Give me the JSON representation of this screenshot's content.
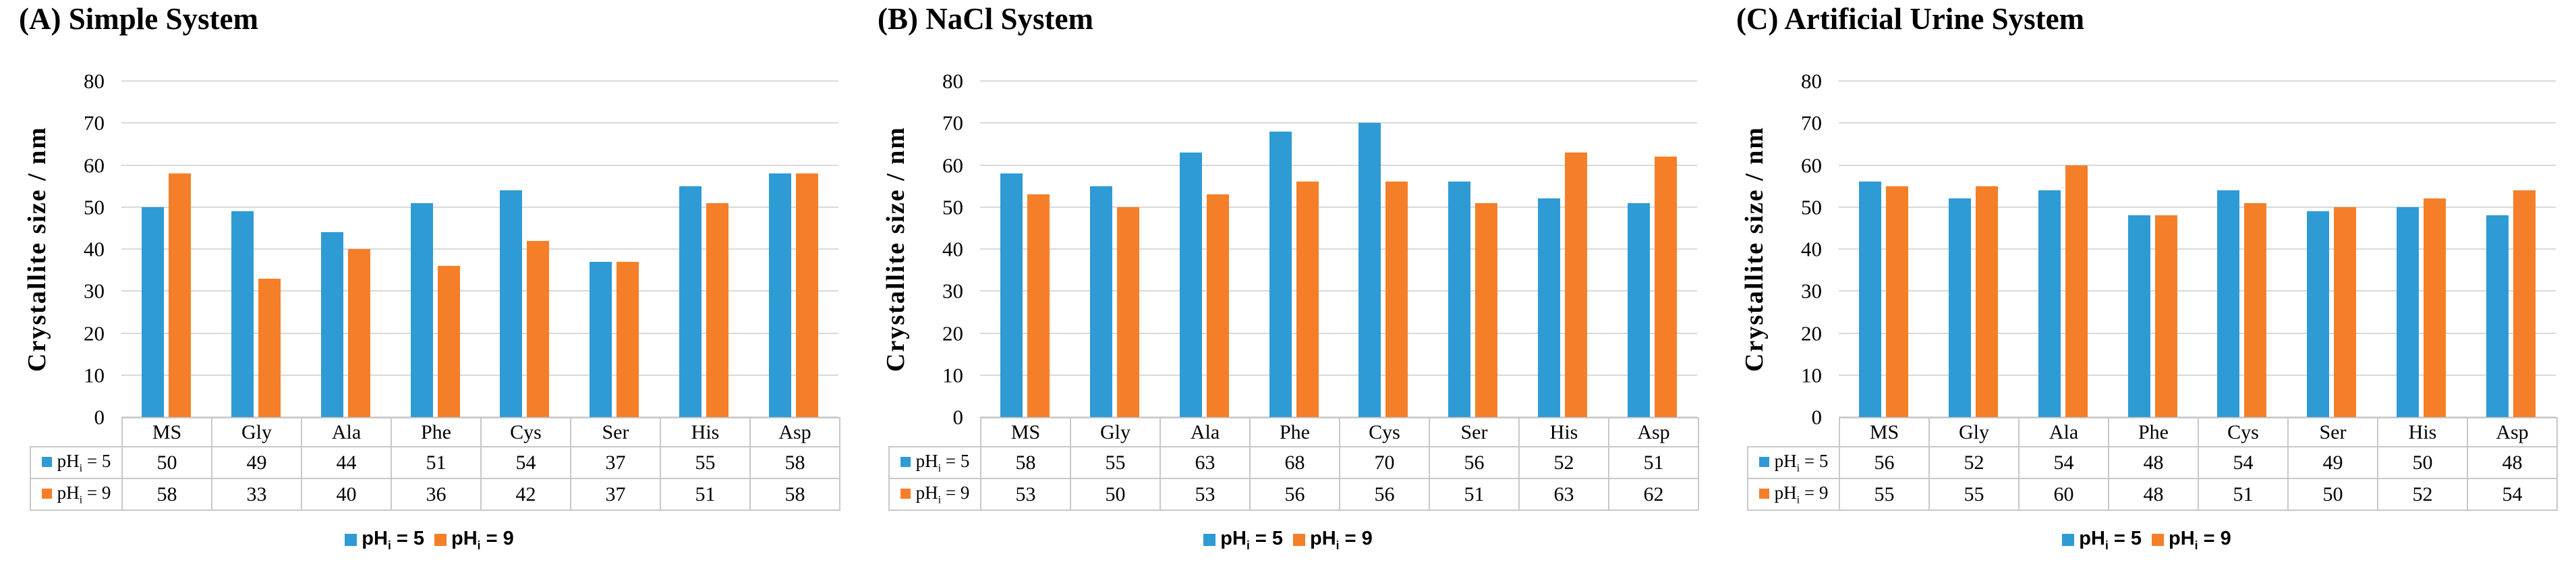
{
  "figure": {
    "background": "#FFFFFF",
    "panel_count": 3
  },
  "colors": {
    "series_ph5": "#2E9BD5",
    "series_ph9": "#F57F28",
    "gridline": "#D9D9D9",
    "table_border": "#C8C8C8",
    "text": "#000000"
  },
  "chart_data": [
    {
      "type": "bar",
      "panel": "A",
      "title": "(A) Simple System",
      "ylabel": "Crystallite size / nm",
      "xlabel": "",
      "ylim": [
        0,
        80
      ],
      "yticks": [
        0,
        10,
        20,
        30,
        40,
        50,
        60,
        70,
        80
      ],
      "grid": true,
      "legend_position": "bottom-center",
      "categories": [
        "MS",
        "Gly",
        "Ala",
        "Phe",
        "Cys",
        "Ser",
        "His",
        "Asp"
      ],
      "series": [
        {
          "id": "ph5",
          "name": "pHi = 5",
          "label_base": "pH",
          "label_sub": "i",
          "label_eq": " = 5",
          "color": "#2E9BD5",
          "values": [
            50,
            49,
            44,
            51,
            54,
            37,
            55,
            58
          ]
        },
        {
          "id": "ph9",
          "name": "pHi = 9",
          "label_base": "pH",
          "label_sub": "i",
          "label_eq": " = 9",
          "color": "#F57F28",
          "values": [
            58,
            33,
            40,
            36,
            42,
            37,
            51,
            58
          ]
        }
      ]
    },
    {
      "type": "bar",
      "panel": "B",
      "title": "(B) NaCl System",
      "ylabel": "Crystallite size / nm",
      "xlabel": "",
      "ylim": [
        0,
        80
      ],
      "yticks": [
        0,
        10,
        20,
        30,
        40,
        50,
        60,
        70,
        80
      ],
      "grid": true,
      "legend_position": "bottom-center",
      "categories": [
        "MS",
        "Gly",
        "Ala",
        "Phe",
        "Cys",
        "Ser",
        "His",
        "Asp"
      ],
      "series": [
        {
          "id": "ph5",
          "name": "pHi = 5",
          "label_base": "pH",
          "label_sub": "i",
          "label_eq": " = 5",
          "color": "#2E9BD5",
          "values": [
            58,
            55,
            63,
            68,
            70,
            56,
            52,
            51
          ]
        },
        {
          "id": "ph9",
          "name": "pHi = 9",
          "label_base": "pH",
          "label_sub": "i",
          "label_eq": " = 9",
          "color": "#F57F28",
          "values": [
            53,
            50,
            53,
            56,
            56,
            51,
            63,
            62
          ]
        }
      ]
    },
    {
      "type": "bar",
      "panel": "C",
      "title": "(C) Artificial Urine System",
      "ylabel": "Crystallite size / nm",
      "xlabel": "",
      "ylim": [
        0,
        80
      ],
      "yticks": [
        0,
        10,
        20,
        30,
        40,
        50,
        60,
        70,
        80
      ],
      "grid": true,
      "legend_position": "bottom-center",
      "categories": [
        "MS",
        "Gly",
        "Ala",
        "Phe",
        "Cys",
        "Ser",
        "His",
        "Asp"
      ],
      "series": [
        {
          "id": "ph5",
          "name": "pHi = 5",
          "label_base": "pH",
          "label_sub": "i",
          "label_eq": " = 5",
          "color": "#2E9BD5",
          "values": [
            56,
            52,
            54,
            48,
            54,
            49,
            50,
            48
          ]
        },
        {
          "id": "ph9",
          "name": "pHi = 9",
          "label_base": "pH",
          "label_sub": "i",
          "label_eq": " = 9",
          "color": "#F57F28",
          "values": [
            55,
            55,
            60,
            48,
            51,
            50,
            52,
            54
          ]
        }
      ]
    }
  ]
}
